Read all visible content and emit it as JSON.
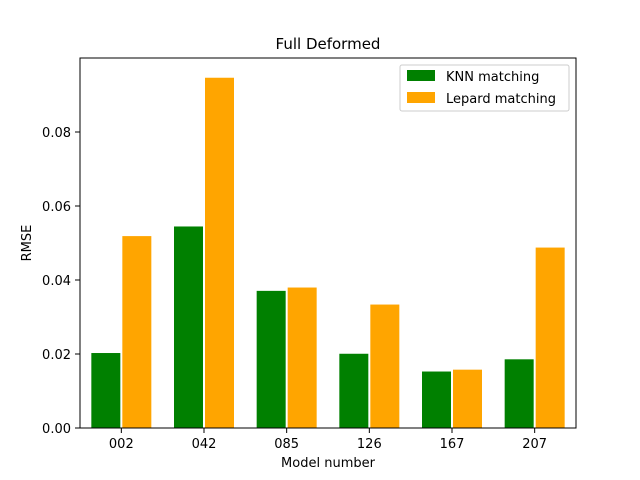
{
  "chart_data": {
    "type": "bar",
    "title": "Full Deformed",
    "xlabel": "Model number",
    "ylabel": "RMSE",
    "categories": [
      "002",
      "042",
      "085",
      "126",
      "167",
      "207"
    ],
    "series": [
      {
        "name": "KNN matching",
        "color": "#008000",
        "values": [
          0.0204,
          0.0546,
          0.0372,
          0.0202,
          0.0154,
          0.0187
        ]
      },
      {
        "name": "Lepard matching",
        "color": "#ffa500",
        "values": [
          0.052,
          0.0948,
          0.0381,
          0.0335,
          0.0159,
          0.0489
        ]
      }
    ],
    "ylim": [
      0,
      0.1
    ],
    "yticks": [
      0.0,
      0.02,
      0.04,
      0.06,
      0.08
    ],
    "ytick_labels": [
      "0.00",
      "0.02",
      "0.04",
      "0.06",
      "0.08"
    ],
    "grid": false,
    "legend_position": "top-right"
  }
}
